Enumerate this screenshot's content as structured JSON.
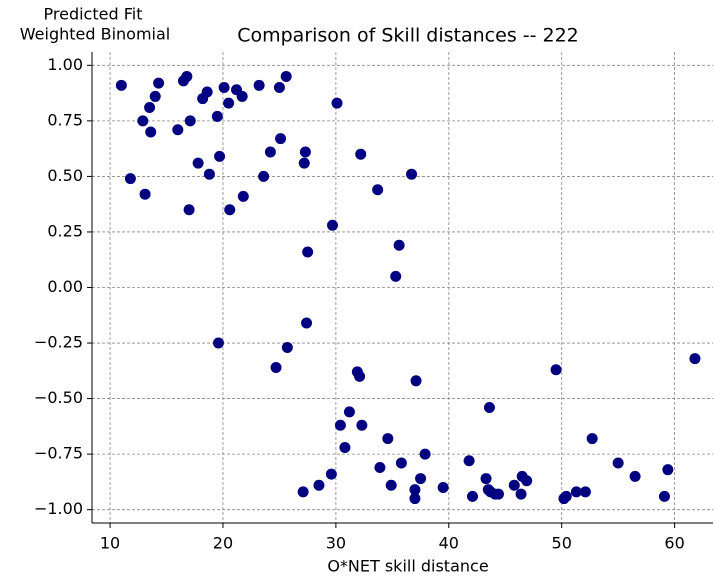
{
  "chart_data": {
    "type": "scatter",
    "title": "Comparison of Skill distances -- 222",
    "y_label_lines": [
      "Predicted Fit",
      "Weighted Binomial"
    ],
    "x_label": "O*NET skill distance",
    "color": "#000080",
    "grid": true,
    "xlim": [
      8.4,
      63.4
    ],
    "ylim": [
      -1.06,
      1.06
    ],
    "xticks": [
      10,
      20,
      30,
      40,
      50,
      60
    ],
    "yticks": [
      {
        "value": 1,
        "label": "1.00"
      },
      {
        "value": 0.75,
        "label": "0.75"
      },
      {
        "value": 0.5,
        "label": "0.50"
      },
      {
        "value": 0.25,
        "label": "0.25"
      },
      {
        "value": 0,
        "label": "0.00"
      },
      {
        "value": -0.25,
        "label": "−0.25"
      },
      {
        "value": -0.5,
        "label": "−0.50"
      },
      {
        "value": -0.75,
        "label": "−0.75"
      },
      {
        "value": -1,
        "label": "−1.00"
      }
    ],
    "x": [
      11.0,
      11.8,
      12.9,
      13.1,
      13.5,
      13.6,
      14.0,
      14.3,
      16.0,
      16.5,
      16.8,
      17.0,
      17.1,
      17.8,
      18.2,
      18.6,
      18.8,
      19.5,
      19.7,
      19.6,
      20.1,
      20.5,
      20.6,
      21.2,
      21.7,
      21.8,
      23.2,
      23.6,
      24.2,
      24.7,
      25.0,
      25.1,
      25.6,
      25.7,
      27.1,
      27.2,
      27.3,
      27.4,
      27.5,
      28.5,
      29.6,
      29.7,
      30.1,
      30.4,
      30.8,
      31.2,
      31.9,
      32.1,
      32.2,
      32.3,
      33.7,
      33.9,
      34.6,
      34.9,
      35.3,
      35.6,
      35.8,
      36.7,
      37.0,
      37.0,
      37.1,
      37.5,
      37.9,
      39.5,
      41.8,
      42.1,
      43.3,
      43.5,
      43.6,
      43.7,
      44.1,
      44.4,
      45.8,
      46.4,
      46.5,
      46.9,
      49.5,
      50.2,
      50.4,
      51.3,
      52.1,
      52.7,
      55.0,
      56.5,
      59.1,
      59.4,
      61.8
    ],
    "y": [
      0.91,
      0.49,
      0.75,
      0.42,
      0.81,
      0.7,
      0.86,
      0.92,
      0.71,
      0.93,
      0.95,
      0.35,
      0.75,
      0.56,
      0.85,
      0.88,
      0.51,
      0.77,
      0.59,
      -0.25,
      0.9,
      0.83,
      0.35,
      0.89,
      0.86,
      0.41,
      0.91,
      0.5,
      0.61,
      -0.36,
      0.9,
      0.67,
      0.95,
      -0.27,
      -0.92,
      0.56,
      0.61,
      -0.16,
      0.16,
      -0.89,
      -0.84,
      0.28,
      0.83,
      -0.62,
      -0.72,
      -0.56,
      -0.38,
      -0.4,
      0.6,
      -0.62,
      0.44,
      -0.81,
      -0.68,
      -0.89,
      0.05,
      0.19,
      -0.79,
      0.51,
      -0.95,
      -0.91,
      -0.42,
      -0.86,
      -0.75,
      -0.9,
      -0.78,
      -0.94,
      -0.86,
      -0.91,
      -0.54,
      -0.92,
      -0.93,
      -0.93,
      -0.89,
      -0.93,
      -0.85,
      -0.87,
      -0.37,
      -0.95,
      -0.94,
      -0.92,
      -0.92,
      -0.68,
      -0.79,
      -0.85,
      -0.94,
      -0.82,
      -0.32
    ]
  }
}
